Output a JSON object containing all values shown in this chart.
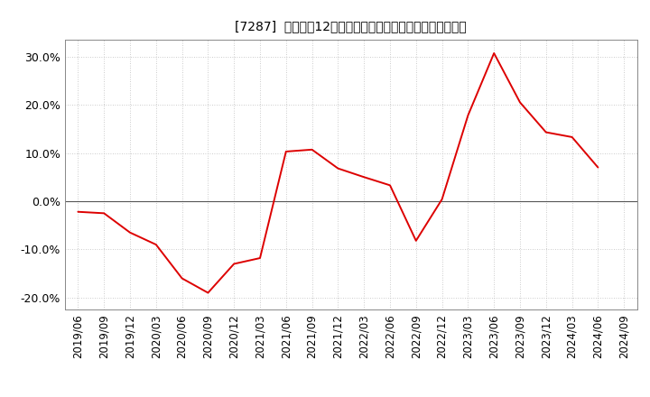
{
  "title": "[7287]  売上高の12か月移動合計の対前年同期増減率の推移",
  "line_color": "#dd0000",
  "background_color": "#ffffff",
  "grid_color": "#bbbbbb",
  "zero_line_color": "#555555",
  "ylim": [
    -0.225,
    0.335
  ],
  "yticks": [
    -0.2,
    -0.1,
    0.0,
    0.1,
    0.2,
    0.3
  ],
  "dates": [
    "2019/06",
    "2019/09",
    "2019/12",
    "2020/03",
    "2020/06",
    "2020/09",
    "2020/12",
    "2021/03",
    "2021/06",
    "2021/09",
    "2021/12",
    "2022/03",
    "2022/06",
    "2022/09",
    "2022/12",
    "2023/03",
    "2023/06",
    "2023/09",
    "2023/12",
    "2024/03",
    "2024/06",
    "2024/09"
  ],
  "values": [
    -0.022,
    -0.025,
    -0.065,
    -0.09,
    -0.16,
    -0.19,
    -0.13,
    -0.118,
    0.103,
    0.107,
    0.068,
    0.05,
    0.033,
    -0.082,
    0.004,
    0.178,
    0.307,
    0.205,
    0.143,
    0.133,
    0.07,
    null
  ],
  "title_fontsize": 12,
  "tick_fontsize": 8.5,
  "ytick_fontsize": 9
}
